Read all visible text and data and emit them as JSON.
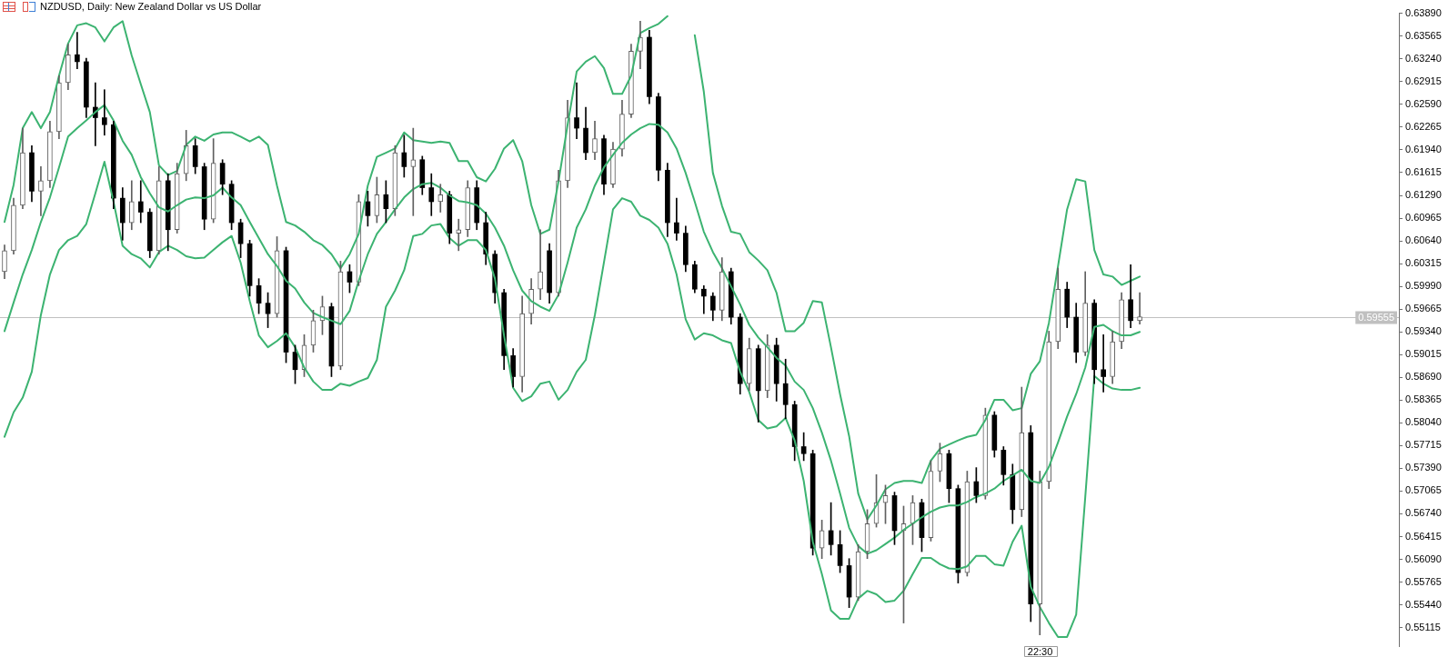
{
  "chart_data": {
    "type": "candlestick",
    "title": "NZDUSD, Daily: New Zealand Dollar vs US Dollar",
    "annotations": [
      "22:30"
    ],
    "categories": [
      null,
      null,
      null,
      null,
      null,
      null,
      null,
      null,
      null,
      null,
      null,
      null,
      null,
      null,
      null,
      null,
      null,
      null,
      null,
      null,
      null,
      null,
      null,
      null,
      null,
      null,
      null,
      null,
      null,
      null,
      null,
      null,
      null,
      null,
      null,
      null,
      null,
      null,
      null,
      null,
      null,
      null,
      null,
      null,
      null,
      null,
      null,
      null,
      null,
      null,
      null,
      null,
      null,
      null,
      null,
      null,
      null,
      null,
      null,
      null,
      null,
      null,
      null,
      null,
      null,
      null,
      null,
      null,
      null,
      null,
      null,
      null,
      null,
      null,
      null,
      null,
      null,
      null,
      null,
      null,
      null,
      null,
      null,
      null,
      null,
      null,
      null,
      null,
      null,
      null,
      null,
      null,
      null,
      null,
      null,
      null,
      null,
      null,
      null,
      null,
      null,
      null,
      null,
      null,
      null,
      null,
      null,
      null,
      null,
      null,
      null,
      null,
      null,
      null,
      null,
      null,
      null,
      null,
      null,
      null,
      null,
      null,
      null,
      null,
      null,
      null
    ],
    "colors": [
      "#5f5f5f",
      "#5f5f5f",
      "#5f5f5f",
      "#000000",
      "#5f5f5f",
      "#5f5f5f",
      "#5f5f5f",
      "#5f5f5f",
      "#000000",
      "#000000",
      "#000000",
      "#000000",
      "#000000",
      "#000000",
      "#5f5f5f",
      "#000000",
      "#000000",
      "#5f5f5f",
      "#000000",
      "#5f5f5f",
      "#5f5f5f",
      "#000000",
      "#000000",
      "#5f5f5f",
      "#000000",
      "#000000",
      "#000000",
      "#000000",
      "#000000",
      "#000000",
      "#5f5f5f",
      "#000000",
      "#000000",
      "#5f5f5f",
      "#5f5f5f",
      "#5f5f5f",
      "#000000",
      "#5f5f5f",
      "#000000",
      "#5f5f5f",
      "#000000",
      "#5f5f5f",
      "#000000",
      "#5f5f5f",
      "#000000",
      "#5f5f5f",
      "#000000",
      "#000000",
      "#5f5f5f",
      "#000000",
      "#5f5f5f",
      "#5f5f5f",
      "#000000",
      "#000000",
      "#000000",
      "#000000",
      "#000000",
      "#5f5f5f",
      "#5f5f5f",
      "#5f5f5f",
      "#000000",
      "#5f5f5f",
      "#5f5f5f",
      "#000000",
      "#000000",
      "#5f5f5f",
      "#000000",
      "#5f5f5f",
      "#5f5f5f",
      "#5f5f5f",
      "#5f5f5f",
      "#000000",
      "#000000",
      "#000000",
      "#000000",
      "#000000",
      "#000000",
      "#000000",
      "#000000",
      "#5f5f5f",
      "#000000",
      "#000000",
      "#5f5f5f",
      "#000000",
      "#5f5f5f",
      "#000000",
      "#000000",
      "#000000",
      "#000000",
      "#000000",
      "#5f5f5f",
      "#000000",
      "#000000",
      "#000000",
      "#5f5f5f",
      "#5f5f5f",
      "#5f5f5f",
      "#5f5f5f",
      "#000000",
      "#5f5f5f",
      "#5f5f5f",
      "#000000",
      "#5f5f5f",
      "#5f5f5f",
      "#000000",
      "#000000",
      "#5f5f5f",
      "#000000",
      "#5f5f5f",
      "#000000",
      "#000000",
      "#000000",
      "#5f5f5f",
      "#000000",
      "#5f5f5f",
      "#5f5f5f",
      "#5f5f5f",
      "#000000",
      "#000000",
      "#5f5f5f",
      "#000000",
      "#000000",
      "#5f5f5f",
      "#5f5f5f",
      "#000000",
      "#5f5f5f"
    ],
    "ohlc": [
      [
        0.602,
        0.6058,
        0.601,
        0.605
      ],
      [
        0.605,
        0.6125,
        0.6045,
        0.6115
      ],
      [
        0.6115,
        0.6225,
        0.611,
        0.619
      ],
      [
        0.619,
        0.62,
        0.612,
        0.6135
      ],
      [
        0.6135,
        0.617,
        0.61,
        0.615
      ],
      [
        0.615,
        0.6235,
        0.614,
        0.622
      ],
      [
        0.622,
        0.63,
        0.621,
        0.629
      ],
      [
        0.629,
        0.6345,
        0.628,
        0.633
      ],
      [
        0.633,
        0.6362,
        0.631,
        0.632
      ],
      [
        0.632,
        0.6325,
        0.624,
        0.6255
      ],
      [
        0.6255,
        0.629,
        0.62,
        0.624
      ],
      [
        0.624,
        0.628,
        0.6215,
        0.623
      ],
      [
        0.623,
        0.6235,
        0.611,
        0.6125
      ],
      [
        0.6125,
        0.614,
        0.6065,
        0.609
      ],
      [
        0.609,
        0.615,
        0.608,
        0.612
      ],
      [
        0.612,
        0.615,
        0.609,
        0.6105
      ],
      [
        0.6105,
        0.611,
        0.604,
        0.605
      ],
      [
        0.605,
        0.617,
        0.6045,
        0.615
      ],
      [
        0.615,
        0.616,
        0.605,
        0.608
      ],
      [
        0.608,
        0.6175,
        0.6075,
        0.616
      ],
      [
        0.616,
        0.6222,
        0.615,
        0.62
      ],
      [
        0.62,
        0.621,
        0.616,
        0.617
      ],
      [
        0.617,
        0.6175,
        0.608,
        0.6095
      ],
      [
        0.6095,
        0.621,
        0.609,
        0.6175
      ],
      [
        0.6175,
        0.618,
        0.613,
        0.6145
      ],
      [
        0.6145,
        0.615,
        0.608,
        0.609
      ],
      [
        0.609,
        0.6095,
        0.604,
        0.606
      ],
      [
        0.606,
        0.6065,
        0.5985,
        0.6
      ],
      [
        0.6,
        0.601,
        0.596,
        0.5975
      ],
      [
        0.5975,
        0.599,
        0.594,
        0.596
      ],
      [
        0.596,
        0.607,
        0.5955,
        0.605
      ],
      [
        0.605,
        0.6055,
        0.589,
        0.5905
      ],
      [
        0.5905,
        0.5915,
        0.586,
        0.588
      ],
      [
        0.588,
        0.593,
        0.587,
        0.5915
      ],
      [
        0.5915,
        0.5965,
        0.5905,
        0.595
      ],
      [
        0.595,
        0.5985,
        0.593,
        0.597
      ],
      [
        0.597,
        0.5975,
        0.587,
        0.5885
      ],
      [
        0.5885,
        0.6035,
        0.588,
        0.602
      ],
      [
        0.602,
        0.603,
        0.599,
        0.6005
      ],
      [
        0.6005,
        0.613,
        0.6,
        0.612
      ],
      [
        0.612,
        0.6135,
        0.6085,
        0.61
      ],
      [
        0.61,
        0.6155,
        0.609,
        0.613
      ],
      [
        0.613,
        0.615,
        0.609,
        0.611
      ],
      [
        0.611,
        0.62,
        0.61,
        0.619
      ],
      [
        0.619,
        0.6215,
        0.6155,
        0.617
      ],
      [
        0.617,
        0.6225,
        0.61,
        0.618
      ],
      [
        0.618,
        0.6185,
        0.613,
        0.614
      ],
      [
        0.614,
        0.616,
        0.61,
        0.612
      ],
      [
        0.612,
        0.6145,
        0.6105,
        0.613
      ],
      [
        0.613,
        0.6135,
        0.606,
        0.6075
      ],
      [
        0.6075,
        0.6095,
        0.605,
        0.608
      ],
      [
        0.608,
        0.615,
        0.607,
        0.614
      ],
      [
        0.614,
        0.615,
        0.608,
        0.609
      ],
      [
        0.609,
        0.6105,
        0.603,
        0.6045
      ],
      [
        0.6045,
        0.605,
        0.5975,
        0.599
      ],
      [
        0.599,
        0.5995,
        0.588,
        0.59
      ],
      [
        0.59,
        0.591,
        0.5855,
        0.587
      ],
      [
        0.587,
        0.5985,
        0.5848,
        0.596
      ],
      [
        0.596,
        0.601,
        0.5945,
        0.5995
      ],
      [
        0.5995,
        0.608,
        0.598,
        0.602
      ],
      [
        0.605,
        0.606,
        0.5975,
        0.599
      ],
      [
        0.599,
        0.6165,
        0.5985,
        0.615
      ],
      [
        0.615,
        0.6265,
        0.614,
        0.624
      ],
      [
        0.624,
        0.629,
        0.621,
        0.6225
      ],
      [
        0.6225,
        0.6255,
        0.618,
        0.619
      ],
      [
        0.619,
        0.6235,
        0.618,
        0.621
      ],
      [
        0.621,
        0.6215,
        0.613,
        0.6145
      ],
      [
        0.6145,
        0.6205,
        0.614,
        0.6195
      ],
      [
        0.6195,
        0.6265,
        0.6185,
        0.6245
      ],
      [
        0.6245,
        0.6345,
        0.624,
        0.6335
      ],
      [
        0.6335,
        0.6378,
        0.631,
        0.6355
      ],
      [
        0.6355,
        0.6365,
        0.626,
        0.627
      ],
      [
        0.627,
        0.6275,
        0.615,
        0.6165
      ],
      [
        0.6165,
        0.6175,
        0.607,
        0.609
      ],
      [
        0.609,
        0.6125,
        0.6065,
        0.6075
      ],
      [
        0.6075,
        0.6085,
        0.602,
        0.603
      ],
      [
        0.603,
        0.6035,
        0.599,
        0.5995
      ],
      [
        0.5995,
        0.6,
        0.596,
        0.5985
      ],
      [
        0.5985,
        0.599,
        0.595,
        0.5965
      ],
      [
        0.5965,
        0.604,
        0.595,
        0.602
      ],
      [
        0.602,
        0.6025,
        0.5945,
        0.5955
      ],
      [
        0.5955,
        0.596,
        0.5845,
        0.586
      ],
      [
        0.586,
        0.5925,
        0.585,
        0.591
      ],
      [
        0.591,
        0.5915,
        0.5805,
        0.585
      ],
      [
        0.585,
        0.593,
        0.584,
        0.5915
      ],
      [
        0.5915,
        0.5925,
        0.5835,
        0.586
      ],
      [
        0.586,
        0.5895,
        0.581,
        0.583
      ],
      [
        0.583,
        0.5835,
        0.575,
        0.577
      ],
      [
        0.577,
        0.579,
        0.575,
        0.576
      ],
      [
        0.576,
        0.5765,
        0.5615,
        0.5625
      ],
      [
        0.5625,
        0.5665,
        0.561,
        0.565
      ],
      [
        0.565,
        0.569,
        0.5615,
        0.563
      ],
      [
        0.563,
        0.565,
        0.559,
        0.56
      ],
      [
        0.56,
        0.561,
        0.554,
        0.5555
      ],
      [
        0.5555,
        0.563,
        0.555,
        0.562
      ],
      [
        0.562,
        0.568,
        0.561,
        0.566
      ],
      [
        0.566,
        0.573,
        0.5655,
        0.569
      ],
      [
        0.569,
        0.5715,
        0.566,
        0.57
      ],
      [
        0.57,
        0.5705,
        0.563,
        0.565
      ],
      [
        0.565,
        0.5685,
        0.5518,
        0.566
      ],
      [
        0.566,
        0.57,
        0.563,
        0.569
      ],
      [
        0.569,
        0.5695,
        0.562,
        0.564
      ],
      [
        0.564,
        0.575,
        0.5635,
        0.5735
      ],
      [
        0.5735,
        0.5775,
        0.572,
        0.576
      ],
      [
        0.576,
        0.5765,
        0.569,
        0.571
      ],
      [
        0.571,
        0.5715,
        0.5575,
        0.559
      ],
      [
        0.559,
        0.5735,
        0.5585,
        0.572
      ],
      [
        0.572,
        0.574,
        0.569,
        0.57
      ],
      [
        0.57,
        0.5825,
        0.5695,
        0.5815
      ],
      [
        0.5815,
        0.582,
        0.5755,
        0.5765
      ],
      [
        0.5765,
        0.577,
        0.5715,
        0.573
      ],
      [
        0.573,
        0.5745,
        0.566,
        0.568
      ],
      [
        0.568,
        0.5855,
        0.567,
        0.579
      ],
      [
        0.579,
        0.58,
        0.552,
        0.5545
      ],
      [
        0.5545,
        0.5735,
        0.5501,
        0.572
      ],
      [
        0.572,
        0.5935,
        0.571,
        0.592
      ],
      [
        0.592,
        0.6025,
        0.591,
        0.5995
      ],
      [
        0.5995,
        0.6005,
        0.594,
        0.5955
      ],
      [
        0.5955,
        0.5975,
        0.589,
        0.5905
      ],
      [
        0.5905,
        0.602,
        0.59,
        0.5975
      ],
      [
        0.5975,
        0.598,
        0.586,
        0.588
      ],
      [
        0.588,
        0.593,
        0.5848,
        0.587
      ],
      [
        0.587,
        0.5935,
        0.586,
        0.592
      ],
      [
        0.592,
        0.599,
        0.591,
        0.598
      ],
      [
        0.598,
        0.603,
        0.594,
        0.595
      ],
      [
        0.595,
        0.599,
        0.5945,
        0.59555
      ]
    ],
    "series": [
      {
        "type": "line",
        "color": "#3cb371",
        "values": [
          0.6091,
          0.6144,
          0.6225,
          0.6248,
          0.6225,
          0.6248,
          0.63,
          0.6346,
          0.6372,
          0.6375,
          0.6369,
          0.6349,
          0.6369,
          0.6378,
          0.6329,
          0.6288,
          0.6248,
          0.6172,
          0.6158,
          0.6164,
          0.6201,
          0.6213,
          0.6207,
          0.6216,
          0.6219,
          0.6219,
          0.6213,
          0.6206,
          0.6213,
          0.6201,
          0.6143,
          0.6091,
          0.6086,
          0.6077,
          0.6065,
          0.6058,
          0.6045,
          0.6025,
          0.6045,
          0.6074,
          0.6143,
          0.6184,
          0.619,
          0.6196,
          0.6219,
          0.6208,
          0.6206,
          0.6204,
          0.6206,
          0.6204,
          0.6178,
          0.6178,
          0.6155,
          0.6149,
          0.6167,
          0.6196,
          0.6208,
          0.6178,
          0.6115,
          0.6074,
          0.608,
          0.6149,
          0.623,
          0.6306,
          0.632,
          0.6328,
          0.6311,
          0.6274,
          0.6274,
          0.63,
          0.6361,
          0.6368,
          0.6374,
          0.6385,
          null,
          null,
          0.6358,
          0.6277,
          0.6161,
          0.6114,
          0.6077,
          0.6074,
          0.6048,
          0.6036,
          0.6022,
          0.599,
          0.5935,
          0.5935,
          0.5947,
          0.5978,
          0.5976,
          0.5912,
          0.5845,
          0.5785,
          0.5703,
          0.5666,
          0.5686,
          0.5709,
          0.5718,
          0.5721,
          0.5721,
          0.5718,
          0.575,
          0.5767,
          0.5773,
          0.5779,
          0.5784,
          0.5787,
          0.5808,
          0.5837,
          0.5837,
          0.5822,
          0.5825,
          0.5874,
          0.5892,
          0.5947,
          0.6028,
          0.6109,
          0.6152,
          0.6149,
          0.6051,
          0.6016,
          0.6013,
          0.6001,
          0.6007,
          0.6013
        ]
      },
      {
        "type": "line",
        "color": "#3cb371",
        "values": [
          0.5935,
          0.5976,
          0.6016,
          0.6051,
          0.6091,
          0.6126,
          0.6169,
          0.6213,
          0.6225,
          0.6236,
          0.6248,
          0.6258,
          0.6236,
          0.6207,
          0.6187,
          0.6155,
          0.6132,
          0.6112,
          0.6106,
          0.6115,
          0.6123,
          0.6126,
          0.6125,
          0.6129,
          0.614,
          0.6126,
          0.6115,
          0.6091,
          0.6068,
          0.6045,
          0.6028,
          0.6007,
          0.5996,
          0.5976,
          0.5961,
          0.5955,
          0.595,
          0.5945,
          0.5964,
          0.6007,
          0.6045,
          0.6074,
          0.6091,
          0.6109,
          0.6126,
          0.6138,
          0.6145,
          0.6147,
          0.614,
          0.6129,
          0.6121,
          0.6119,
          0.6115,
          0.6103,
          0.6083,
          0.6057,
          0.6022,
          0.5993,
          0.5978,
          0.597,
          0.5964,
          0.5987,
          0.6033,
          0.6083,
          0.6109,
          0.6143,
          0.6169,
          0.6187,
          0.6204,
          0.6216,
          0.6225,
          0.6231,
          0.623,
          0.6219,
          0.6196,
          0.6161,
          0.612,
          0.6077,
          0.6048,
          0.6025,
          0.5999,
          0.5973,
          0.5944,
          0.5926,
          0.5912,
          0.5897,
          0.5886,
          0.5863,
          0.5851,
          0.5825,
          0.579,
          0.575,
          0.5703,
          0.5654,
          0.5628,
          0.5617,
          0.5622,
          0.5631,
          0.564,
          0.5651,
          0.566,
          0.5669,
          0.5677,
          0.5683,
          0.5686,
          0.5686,
          0.5691,
          0.5698,
          0.5703,
          0.571,
          0.5721,
          0.5729,
          0.5737,
          0.5721,
          0.5718,
          0.5741,
          0.5776,
          0.5813,
          0.5845,
          0.5883,
          0.5941,
          0.5944,
          0.5935,
          0.5929,
          0.5929,
          0.5934
        ]
      },
      {
        "type": "line",
        "color": "#3cb371",
        "values": [
          0.5784,
          0.5819,
          0.584,
          0.5877,
          0.5958,
          0.6016,
          0.6051,
          0.6065,
          0.6071,
          0.6088,
          0.6132,
          0.6177,
          0.612,
          0.6057,
          0.6045,
          0.6039,
          0.6026,
          0.6048,
          0.6057,
          0.6051,
          0.6042,
          0.6039,
          0.604,
          0.6051,
          0.6062,
          0.6071,
          0.6033,
          0.5978,
          0.5929,
          0.5912,
          0.5921,
          0.5932,
          0.5912,
          0.5883,
          0.5863,
          0.5851,
          0.5851,
          0.586,
          0.5857,
          0.5863,
          0.5868,
          0.5894,
          0.597,
          0.5993,
          0.6022,
          0.6071,
          0.6074,
          0.6086,
          0.6088,
          0.6068,
          0.6057,
          0.6065,
          0.6065,
          0.6051,
          0.601,
          0.5929,
          0.5854,
          0.5835,
          0.5842,
          0.586,
          0.5863,
          0.5837,
          0.5851,
          0.5877,
          0.5894,
          0.5958,
          0.6033,
          0.6109,
          0.6125,
          0.612,
          0.61,
          0.6094,
          0.6083,
          0.606,
          0.6016,
          0.5952,
          0.5923,
          0.5932,
          0.5929,
          0.5922,
          0.5918,
          0.5877,
          0.5848,
          0.5808,
          0.5796,
          0.5799,
          0.5811,
          0.5779,
          0.5721,
          0.5634,
          0.5588,
          0.5536,
          0.5524,
          0.5524,
          0.5553,
          0.5564,
          0.5559,
          0.5548,
          0.555,
          0.5564,
          0.5588,
          0.5611,
          0.5611,
          0.5602,
          0.5596,
          0.5595,
          0.5599,
          0.5614,
          0.5614,
          0.5602,
          0.56,
          0.5634,
          0.5657,
          0.557,
          0.5541,
          0.5518,
          0.5498,
          0.5498,
          0.553,
          0.5698,
          0.5871,
          0.586,
          0.5853,
          0.5851,
          0.5851,
          0.5854
        ]
      }
    ],
    "ylim": [
      0.5485,
      0.639
    ],
    "yticks": [
      {
        "value": 0.6389,
        "label": "0.63890"
      },
      0.63565,
      {
        "value": 0.6324,
        "label": "0.63240"
      },
      0.62915,
      {
        "value": 0.6259,
        "label": "0.62590"
      },
      0.62265,
      {
        "value": 0.6194,
        "label": "0.61940"
      },
      0.61615,
      {
        "value": 0.6129,
        "label": "0.61290"
      },
      0.60965,
      {
        "value": 0.6064,
        "label": "0.60640"
      },
      0.60315,
      {
        "value": 0.5999,
        "label": "0.59990"
      },
      0.59665,
      {
        "value": 0.5934,
        "label": "0.59340"
      },
      0.59015,
      {
        "value": 0.5869,
        "label": "0.58690"
      },
      0.58365,
      {
        "value": 0.5804,
        "label": "0.58040"
      },
      0.57715,
      {
        "value": 0.5739,
        "label": "0.57390"
      },
      0.57065,
      {
        "value": 0.5674,
        "label": "0.56740"
      },
      0.56415,
      {
        "value": 0.5609,
        "label": "0.56090"
      },
      0.55765,
      {
        "value": 0.5544,
        "label": "0.55440"
      },
      0.55115
    ],
    "ref_lines": [
      {
        "axis": "y",
        "value": 0.59555,
        "label": "0.59555",
        "color": "#c0c0c0"
      }
    ]
  }
}
